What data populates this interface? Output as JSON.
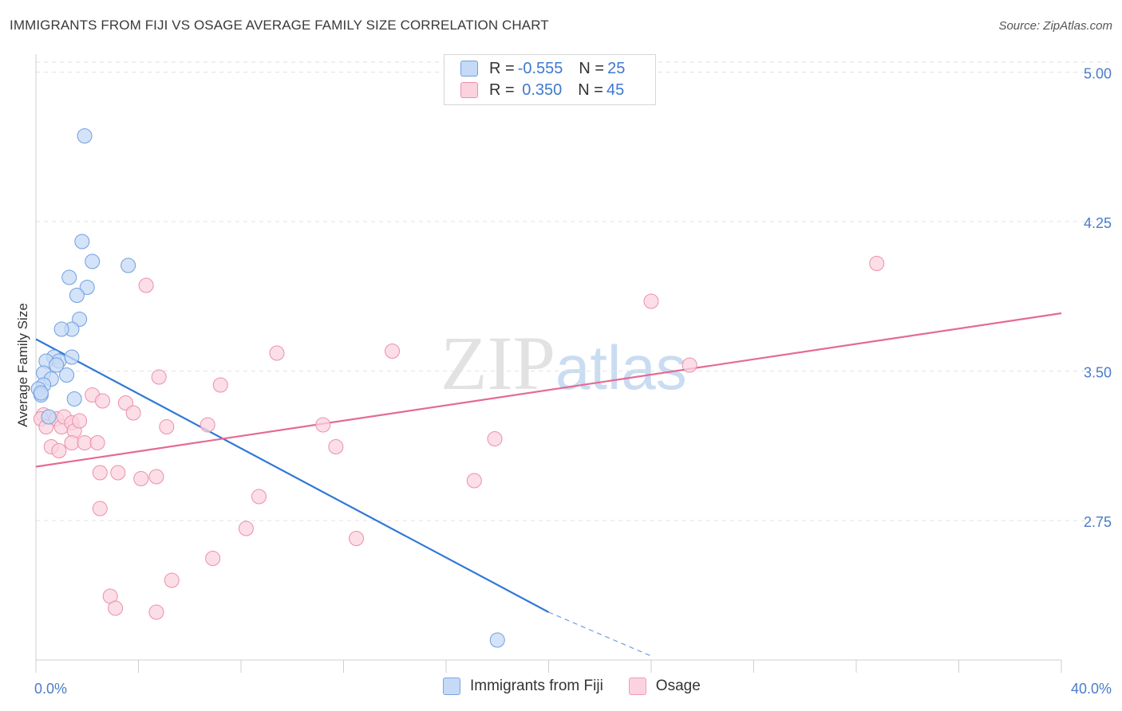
{
  "title": "IMMIGRANTS FROM FIJI VS OSAGE AVERAGE FAMILY SIZE CORRELATION CHART",
  "source": "Source: ZipAtlas.com",
  "watermark": {
    "zip": "ZIP",
    "atlas": "atlas"
  },
  "legend": {
    "rows": [
      {
        "r_label": "R = ",
        "r_value": "-0.555",
        "n_label": "N = ",
        "n_value": "25",
        "color": "#aac8f0",
        "border": "#6f9fe0"
      },
      {
        "r_label": "R = ",
        "r_value": " 0.350",
        "n_label": "N = ",
        "n_value": "45",
        "color": "#f8c3d3",
        "border": "#ec8fab"
      }
    ]
  },
  "bottom_legend": [
    {
      "label": "Immigrants from Fiji",
      "color": "#c5daf6",
      "border": "#7aa5e0"
    },
    {
      "label": "Osage",
      "color": "#fbd3df",
      "border": "#ee9db5"
    }
  ],
  "chart_data": {
    "type": "scatter",
    "title": "IMMIGRANTS FROM FIJI VS OSAGE AVERAGE FAMILY SIZE CORRELATION CHART",
    "xlabel": "",
    "ylabel": "Average Family Size",
    "xlim": [
      0,
      40
    ],
    "ylim": [
      2.05,
      5.05
    ],
    "x_tick_labels": [
      "0.0%",
      "40.0%"
    ],
    "y_ticks": [
      2.75,
      3.5,
      4.25,
      5.0
    ],
    "y_tick_labels": [
      "2.75",
      "3.50",
      "4.25",
      "5.00"
    ],
    "grid": "horizontal dashed",
    "legend_position": "top-center",
    "series": [
      {
        "name": "Immigrants from Fiji",
        "color": "#6f9fe0",
        "fill": "#c5daf6",
        "points": [
          [
            1.9,
            4.68
          ],
          [
            1.8,
            4.15
          ],
          [
            2.2,
            4.05
          ],
          [
            3.6,
            4.03
          ],
          [
            1.3,
            3.97
          ],
          [
            2.0,
            3.92
          ],
          [
            1.6,
            3.88
          ],
          [
            1.7,
            3.76
          ],
          [
            1.4,
            3.71
          ],
          [
            1.0,
            3.71
          ],
          [
            0.7,
            3.57
          ],
          [
            0.9,
            3.55
          ],
          [
            1.4,
            3.57
          ],
          [
            0.4,
            3.55
          ],
          [
            0.8,
            3.53
          ],
          [
            1.2,
            3.48
          ],
          [
            0.3,
            3.49
          ],
          [
            0.6,
            3.46
          ],
          [
            0.3,
            3.43
          ],
          [
            0.1,
            3.41
          ],
          [
            0.2,
            3.38
          ],
          [
            1.5,
            3.36
          ],
          [
            0.5,
            3.27
          ],
          [
            0.2,
            3.39
          ],
          [
            18.0,
            2.15
          ]
        ],
        "trend": {
          "x": [
            0,
            20
          ],
          "y": [
            3.66,
            2.29
          ],
          "dashed_to": [
            24,
            2.07
          ]
        }
      },
      {
        "name": "Osage",
        "color": "#ec8fab",
        "fill": "#fbd3df",
        "points": [
          [
            0.3,
            3.28
          ],
          [
            0.2,
            3.26
          ],
          [
            0.4,
            3.22
          ],
          [
            0.6,
            3.12
          ],
          [
            0.8,
            3.26
          ],
          [
            1.0,
            3.22
          ],
          [
            1.1,
            3.27
          ],
          [
            1.4,
            3.24
          ],
          [
            1.5,
            3.2
          ],
          [
            1.7,
            3.25
          ],
          [
            1.4,
            3.14
          ],
          [
            1.9,
            3.14
          ],
          [
            2.2,
            3.38
          ],
          [
            2.6,
            3.35
          ],
          [
            2.4,
            3.14
          ],
          [
            3.5,
            3.34
          ],
          [
            3.8,
            3.29
          ],
          [
            5.1,
            3.22
          ],
          [
            4.8,
            3.47
          ],
          [
            6.7,
            3.23
          ],
          [
            7.2,
            3.43
          ],
          [
            9.4,
            3.59
          ],
          [
            11.2,
            3.23
          ],
          [
            11.7,
            3.12
          ],
          [
            13.9,
            3.6
          ],
          [
            17.9,
            3.16
          ],
          [
            25.5,
            3.53
          ],
          [
            24.0,
            3.85
          ],
          [
            32.8,
            4.04
          ],
          [
            4.3,
            3.93
          ],
          [
            2.5,
            2.99
          ],
          [
            3.2,
            2.99
          ],
          [
            4.1,
            2.96
          ],
          [
            4.7,
            2.97
          ],
          [
            2.5,
            2.81
          ],
          [
            8.7,
            2.87
          ],
          [
            8.2,
            2.71
          ],
          [
            12.5,
            2.66
          ],
          [
            17.1,
            2.95
          ],
          [
            6.9,
            2.56
          ],
          [
            5.3,
            2.45
          ],
          [
            2.9,
            2.37
          ],
          [
            3.1,
            2.31
          ],
          [
            4.7,
            2.29
          ],
          [
            0.9,
            3.1
          ]
        ],
        "trend": {
          "x": [
            0,
            40
          ],
          "y": [
            3.02,
            3.79
          ]
        }
      }
    ]
  }
}
